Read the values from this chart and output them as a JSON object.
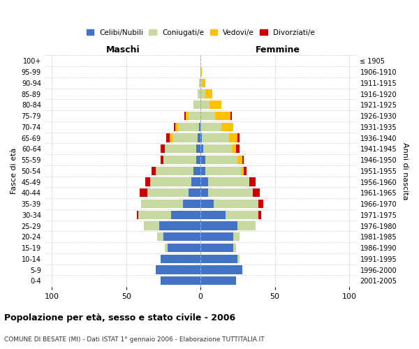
{
  "age_groups_bottom_to_top": [
    "0-4",
    "5-9",
    "10-14",
    "15-19",
    "20-24",
    "25-29",
    "30-34",
    "35-39",
    "40-44",
    "45-49",
    "50-54",
    "55-59",
    "60-64",
    "65-69",
    "70-74",
    "75-79",
    "80-84",
    "85-89",
    "90-94",
    "95-99",
    "100+"
  ],
  "birth_years_bottom_to_top": [
    "2001-2005",
    "1996-2000",
    "1991-1995",
    "1986-1990",
    "1981-1985",
    "1976-1980",
    "1971-1975",
    "1966-1970",
    "1961-1965",
    "1956-1960",
    "1951-1955",
    "1946-1950",
    "1941-1945",
    "1936-1940",
    "1931-1935",
    "1926-1930",
    "1921-1925",
    "1916-1920",
    "1911-1915",
    "1906-1910",
    "≤ 1905"
  ],
  "colors": {
    "celibe": "#4472c4",
    "coniugato": "#c5d9a0",
    "vedovo": "#ffc000",
    "divorziato": "#cc0000"
  },
  "maschi": {
    "celibe": [
      27,
      30,
      27,
      22,
      25,
      28,
      20,
      12,
      8,
      6,
      5,
      3,
      3,
      2,
      1,
      0,
      0,
      0,
      0,
      0,
      0
    ],
    "coniugato": [
      0,
      0,
      0,
      2,
      4,
      10,
      22,
      28,
      28,
      28,
      25,
      22,
      21,
      17,
      14,
      8,
      5,
      2,
      1,
      0,
      0
    ],
    "vedovo": [
      0,
      0,
      0,
      0,
      0,
      0,
      0,
      0,
      0,
      0,
      0,
      0,
      0,
      2,
      2,
      2,
      0,
      0,
      0,
      0,
      0
    ],
    "divorziato": [
      0,
      0,
      0,
      0,
      0,
      0,
      1,
      0,
      5,
      3,
      3,
      2,
      3,
      2,
      1,
      1,
      0,
      0,
      0,
      0,
      0
    ]
  },
  "femmine": {
    "nubile": [
      24,
      28,
      25,
      22,
      22,
      25,
      17,
      9,
      5,
      5,
      3,
      3,
      2,
      1,
      0,
      0,
      0,
      0,
      0,
      0,
      0
    ],
    "coniugata": [
      0,
      0,
      1,
      2,
      4,
      12,
      22,
      30,
      30,
      28,
      24,
      22,
      19,
      18,
      14,
      10,
      6,
      3,
      1,
      0,
      0
    ],
    "vedova": [
      0,
      0,
      0,
      0,
      0,
      0,
      0,
      0,
      0,
      0,
      2,
      3,
      3,
      6,
      8,
      10,
      8,
      5,
      2,
      1,
      0
    ],
    "divorziata": [
      0,
      0,
      0,
      0,
      0,
      0,
      2,
      3,
      5,
      4,
      2,
      1,
      2,
      1,
      0,
      1,
      0,
      0,
      0,
      0,
      0
    ]
  },
  "title": "Popolazione per età, sesso e stato civile - 2006",
  "subtitle": "COMUNE DI BESATE (MI) - Dati ISTAT 1° gennaio 2006 - Elaborazione TUTTITALIA.IT",
  "xlabel_left": "Maschi",
  "xlabel_right": "Femmine",
  "ylabel_left": "Fasce di età",
  "ylabel_right": "Anni di nascita",
  "xlim": 105,
  "bg_color": "#ffffff",
  "grid_color": "#c8c8c8",
  "legend_labels": [
    "Celibi/Nubili",
    "Coniugati/e",
    "Vedovi/e",
    "Divorziati/e"
  ]
}
